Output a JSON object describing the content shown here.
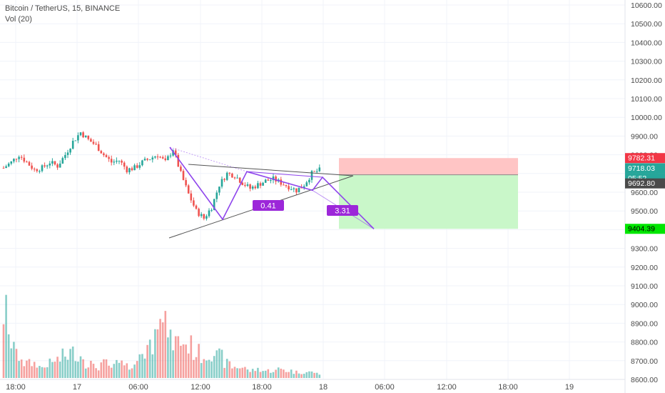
{
  "header": {
    "symbol_line": "Bitcoin / TetherUS, 15, BINANCE",
    "volume_line": "Vol (20)"
  },
  "price_axis": {
    "ticks": [
      "10600.00",
      "10500.00",
      "10400.00",
      "10300.00",
      "10200.00",
      "10100.00",
      "10000.00",
      "9900.00",
      "9800.00",
      "9700.00",
      "9600.00",
      "9500.00",
      "9400.00",
      "9300.00",
      "9200.00",
      "9100.00",
      "9000.00",
      "8900.00",
      "8800.00",
      "8700.00",
      "8600.00"
    ],
    "badges": {
      "stop": "9782.31",
      "last": "9718.03",
      "countdown": "05:52",
      "entry": "9692.80",
      "target": "9404.39"
    }
  },
  "time_axis": {
    "labels": [
      "18:00",
      "17",
      "06:00",
      "12:00",
      "18:00",
      "18",
      "06:00",
      "12:00",
      "18:00",
      "19"
    ]
  },
  "annotations": {
    "ratio_a": "0.41",
    "ratio_b": "3.31"
  },
  "colors": {
    "up": "#26a69a",
    "down": "#ef5350",
    "pattern": "#8e44ec",
    "label_bg": "#9c27d9",
    "stop_zone": "#ffc5c5",
    "target_zone": "#c9f7c9",
    "stop_badge": "#f23645",
    "target_badge": "#00e600",
    "last_badge": "#26a69a",
    "entry_badge": "#4a4a4a"
  },
  "chart_data": {
    "type": "candlestick",
    "symbol": "Bitcoin / TetherUS",
    "interval": "15",
    "exchange": "BINANCE",
    "ylim": [
      8600,
      10630
    ],
    "volume_study": "Vol (20)",
    "price_waypoints": [
      9730,
      9760,
      9800,
      9760,
      9720,
      9730,
      9760,
      9740,
      9800,
      9870,
      9920,
      9880,
      9850,
      9800,
      9760,
      9770,
      9720,
      9730,
      9760,
      9780,
      9800,
      9760,
      9830,
      9700,
      9590,
      9500,
      9460,
      9520,
      9640,
      9700,
      9690,
      9650,
      9620,
      9640,
      9660,
      9670,
      9650,
      9630,
      9610,
      9640,
      9700,
      9718
    ],
    "volume_profile": [
      0.9,
      0.5,
      0.3,
      0.2,
      0.2,
      0.15,
      0.2,
      0.25,
      0.3,
      0.35,
      0.3,
      0.2,
      0.15,
      0.2,
      0.15,
      0.2,
      0.15,
      0.2,
      0.35,
      0.45,
      1.0,
      0.7,
      0.5,
      0.5,
      0.45,
      0.35,
      0.3,
      0.35,
      0.3,
      0.2,
      0.15,
      0.15,
      0.1,
      0.12,
      0.1,
      0.1,
      0.12,
      0.1,
      0.08,
      0.08,
      0.08,
      0.06
    ],
    "pattern_points": [
      {
        "time": "09:45 Sep 17",
        "price": 9840
      },
      {
        "time": "14:15 Sep 17",
        "price": 9455
      },
      {
        "time": "16:45 Sep 17",
        "price": 9710
      },
      {
        "time": "23:00 Sep 17",
        "price": 9610
      },
      {
        "time": "23:45 Sep 17",
        "price": 9680
      },
      {
        "time": "04:45 Sep 18",
        "price": 9404
      }
    ],
    "position": {
      "stop": 9782.31,
      "entry": 9692.8,
      "target": 9404.39,
      "last": 9718.03
    }
  }
}
